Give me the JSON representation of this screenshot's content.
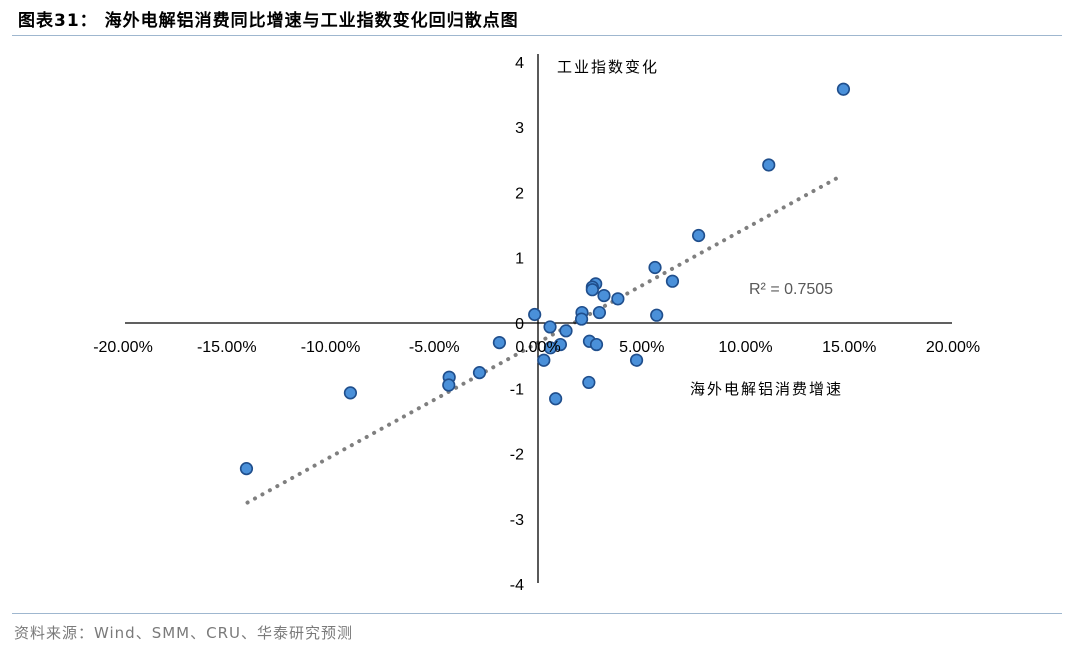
{
  "title": "图表31：  海外电解铝消费同比增速与工业指数变化回归散点图",
  "source": "资料来源：Wind、SMM、CRU、华泰研究预测",
  "chart_data": {
    "type": "scatter",
    "xlabel": "海外电解铝消费增速",
    "ylabel": "工业指数变化",
    "xlim": [
      -0.2,
      0.2
    ],
    "ylim": [
      -4,
      4
    ],
    "x_ticks": [
      -0.2,
      -0.15,
      -0.1,
      -0.05,
      0.0,
      0.05,
      0.1,
      0.15,
      0.2
    ],
    "x_tick_labels": [
      "-20.00%",
      "-15.00%",
      "-10.00%",
      "-5.00%",
      "0.00%",
      "5.00%",
      "10.00%",
      "15.00%",
      "20.00%"
    ],
    "y_ticks": [
      -4,
      -3,
      -2,
      -1,
      0,
      1,
      2,
      3,
      4
    ],
    "y_tick_labels": [
      "-4",
      "-3",
      "-2",
      "-1",
      "0",
      "1",
      "2",
      "3",
      "4"
    ],
    "points": [
      {
        "x": 0.1472,
        "y": 3.58
      },
      {
        "x": 0.1112,
        "y": 2.42
      },
      {
        "x": 0.0774,
        "y": 1.34
      },
      {
        "x": 0.0564,
        "y": 0.85
      },
      {
        "x": 0.0648,
        "y": 0.64
      },
      {
        "x": 0.0278,
        "y": 0.6
      },
      {
        "x": 0.0262,
        "y": 0.55
      },
      {
        "x": 0.0262,
        "y": 0.51
      },
      {
        "x": 0.0318,
        "y": 0.42
      },
      {
        "x": 0.0385,
        "y": 0.37
      },
      {
        "x": 0.0296,
        "y": 0.16
      },
      {
        "x": 0.0212,
        "y": 0.16
      },
      {
        "x": 0.0572,
        "y": 0.12
      },
      {
        "x": -0.0016,
        "y": 0.13
      },
      {
        "x": 0.021,
        "y": 0.06
      },
      {
        "x": 0.0135,
        "y": -0.12
      },
      {
        "x": 0.0058,
        "y": -0.06
      },
      {
        "x": 0.0108,
        "y": -0.33
      },
      {
        "x": 0.006,
        "y": -0.38
      },
      {
        "x": 0.0248,
        "y": -0.28
      },
      {
        "x": 0.0282,
        "y": -0.33
      },
      {
        "x": -0.0186,
        "y": -0.3
      },
      {
        "x": 0.0028,
        "y": -0.57
      },
      {
        "x": 0.0475,
        "y": -0.57
      },
      {
        "x": -0.0282,
        "y": -0.76
      },
      {
        "x": -0.0428,
        "y": -0.83
      },
      {
        "x": -0.043,
        "y": -0.95
      },
      {
        "x": 0.0245,
        "y": -0.91
      },
      {
        "x": -0.0904,
        "y": -1.07
      },
      {
        "x": 0.0085,
        "y": -1.16
      },
      {
        "x": -0.1405,
        "y": -2.23
      }
    ],
    "trendline": {
      "x": [
        -0.14,
        0.147
      ],
      "y": [
        -2.75,
        2.27
      ],
      "style": "dotted"
    },
    "annotation": "R² = 0.7505",
    "marker_color": "#4a90d9",
    "marker_edge_color": "#1f4e8c",
    "trend_color": "#7f7f7f",
    "grid": false,
    "legend": "none"
  }
}
